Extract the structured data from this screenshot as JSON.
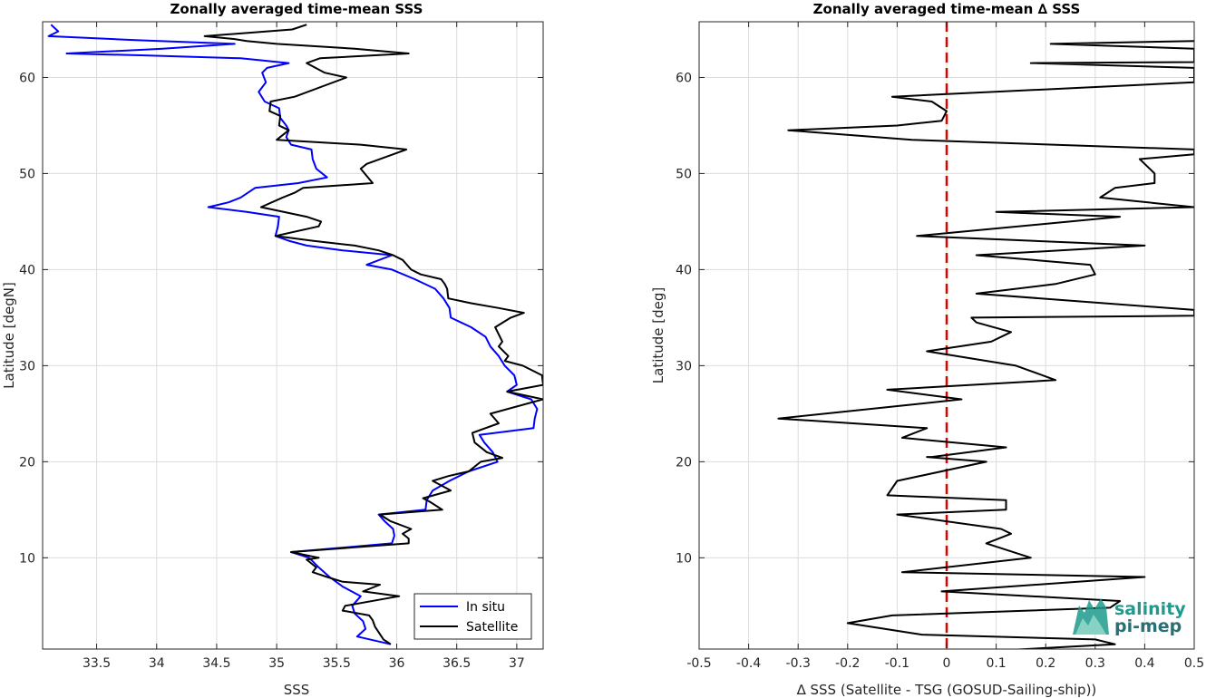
{
  "colors": {
    "in_situ": "#0000ff",
    "satellite": "#000000",
    "zero_line": "#e00000",
    "logo_teal": "#1f9a8c"
  },
  "logo": {
    "line1": "salinity",
    "line2": "pi-mep"
  },
  "chart_data": [
    {
      "type": "line",
      "title": "Zonally averaged time-mean SSS",
      "xlabel": "SSS",
      "ylabel": "Latitude [degN]",
      "xlim": [
        33.05,
        37.22
      ],
      "ylim": [
        0.5,
        65.8
      ],
      "xticks": [
        33.5,
        34,
        34.5,
        35,
        35.5,
        36,
        36.5,
        37
      ],
      "xtick_labels": [
        "33.5",
        "34",
        "34.5",
        "35",
        "35.5",
        "36",
        "36.5",
        "37"
      ],
      "yticks": [
        10,
        20,
        30,
        40,
        50,
        60
      ],
      "ytick_labels": [
        "10",
        "20",
        "30",
        "40",
        "50",
        "60"
      ],
      "grid": true,
      "legend": {
        "location": "bottom-right",
        "entries": [
          "In situ",
          "Satellite"
        ]
      },
      "series": [
        {
          "name": "In situ",
          "color": "#0000ff",
          "points": [
            [
              35.95,
              1.0
            ],
            [
              35.67,
              1.8
            ],
            [
              35.74,
              2.6
            ],
            [
              35.72,
              3.4
            ],
            [
              35.65,
              4.2
            ],
            [
              35.63,
              5.0
            ],
            [
              35.7,
              6.0
            ],
            [
              35.55,
              7.0
            ],
            [
              35.44,
              8.0
            ],
            [
              35.35,
              9.0
            ],
            [
              35.27,
              10.0
            ],
            [
              35.12,
              10.6
            ],
            [
              35.96,
              11.5
            ],
            [
              35.98,
              12.3
            ],
            [
              35.97,
              13.0
            ],
            [
              35.9,
              13.8
            ],
            [
              35.85,
              14.5
            ],
            [
              36.24,
              15.0
            ],
            [
              36.25,
              16.0
            ],
            [
              36.3,
              17.0
            ],
            [
              36.44,
              18.0
            ],
            [
              36.6,
              19.0
            ],
            [
              36.84,
              20.0
            ],
            [
              36.8,
              21.0
            ],
            [
              36.73,
              22.0
            ],
            [
              36.69,
              22.8
            ],
            [
              37.14,
              23.5
            ],
            [
              37.15,
              24.5
            ],
            [
              37.17,
              25.5
            ],
            [
              37.12,
              26.5
            ],
            [
              36.92,
              27.3
            ],
            [
              37.0,
              28.0
            ],
            [
              36.98,
              29.0
            ],
            [
              36.9,
              30.0
            ],
            [
              36.85,
              31.0
            ],
            [
              36.78,
              32.0
            ],
            [
              36.74,
              33.0
            ],
            [
              36.62,
              34.0
            ],
            [
              36.45,
              35.0
            ],
            [
              36.44,
              36.0
            ],
            [
              36.39,
              37.0
            ],
            [
              36.32,
              38.0
            ],
            [
              36.15,
              39.0
            ],
            [
              35.96,
              40.0
            ],
            [
              35.75,
              40.5
            ],
            [
              35.96,
              41.5
            ],
            [
              35.55,
              42.0
            ],
            [
              35.25,
              42.5
            ],
            [
              35.1,
              43.0
            ],
            [
              34.99,
              43.5
            ],
            [
              35.01,
              44.5
            ],
            [
              35.02,
              45.5
            ],
            [
              34.75,
              46.0
            ],
            [
              34.43,
              46.5
            ],
            [
              34.6,
              47.0
            ],
            [
              34.7,
              47.5
            ],
            [
              34.82,
              48.5
            ],
            [
              35.18,
              49.0
            ],
            [
              35.42,
              49.6
            ],
            [
              35.33,
              50.5
            ],
            [
              35.3,
              51.5
            ],
            [
              35.29,
              52.5
            ],
            [
              35.12,
              53.0
            ],
            [
              35.08,
              53.8
            ],
            [
              35.1,
              54.5
            ],
            [
              35.08,
              55.0
            ],
            [
              35.03,
              55.8
            ],
            [
              35.02,
              56.8
            ],
            [
              34.9,
              57.5
            ],
            [
              34.85,
              58.5
            ],
            [
              34.91,
              59.5
            ],
            [
              34.88,
              60.5
            ],
            [
              34.92,
              61.0
            ],
            [
              35.1,
              61.5
            ],
            [
              34.7,
              62.0
            ],
            [
              33.9,
              62.3
            ],
            [
              33.25,
              62.5
            ],
            [
              34.05,
              63.0
            ],
            [
              34.65,
              63.5
            ],
            [
              33.8,
              63.9
            ],
            [
              33.1,
              64.3
            ],
            [
              33.18,
              64.8
            ],
            [
              33.12,
              65.5
            ]
          ]
        },
        {
          "name": "Satellite",
          "color": "#000000",
          "points": [
            [
              35.95,
              1.0
            ],
            [
              35.89,
              1.5
            ],
            [
              35.82,
              2.8
            ],
            [
              35.8,
              3.5
            ],
            [
              35.77,
              4.0
            ],
            [
              35.55,
              4.5
            ],
            [
              35.57,
              5.0
            ],
            [
              36.02,
              6.0
            ],
            [
              35.72,
              6.5
            ],
            [
              35.86,
              7.2
            ],
            [
              35.55,
              7.5
            ],
            [
              35.42,
              8.0
            ],
            [
              35.3,
              8.5
            ],
            [
              35.33,
              9.0
            ],
            [
              35.25,
              9.8
            ],
            [
              35.35,
              10.0
            ],
            [
              35.12,
              10.6
            ],
            [
              36.1,
              11.5
            ],
            [
              36.1,
              12.0
            ],
            [
              36.05,
              12.5
            ],
            [
              36.12,
              13.0
            ],
            [
              35.95,
              13.8
            ],
            [
              35.86,
              14.5
            ],
            [
              36.38,
              15.0
            ],
            [
              36.28,
              15.8
            ],
            [
              36.22,
              16.2
            ],
            [
              36.45,
              17.0
            ],
            [
              36.3,
              18.0
            ],
            [
              36.43,
              18.5
            ],
            [
              36.6,
              19.0
            ],
            [
              36.7,
              20.0
            ],
            [
              36.88,
              20.4
            ],
            [
              36.75,
              21.0
            ],
            [
              36.65,
              22.0
            ],
            [
              36.63,
              23.0
            ],
            [
              36.85,
              24.0
            ],
            [
              36.78,
              25.0
            ],
            [
              37.22,
              26.5
            ],
            [
              36.92,
              27.3
            ],
            [
              37.22,
              28.0
            ],
            [
              37.21,
              29.0
            ],
            [
              37.05,
              30.0
            ],
            [
              36.9,
              30.5
            ],
            [
              36.93,
              31.0
            ],
            [
              36.85,
              32.0
            ],
            [
              36.88,
              32.5
            ],
            [
              36.82,
              34.0
            ],
            [
              36.95,
              35.0
            ],
            [
              37.06,
              35.5
            ],
            [
              36.85,
              36.0
            ],
            [
              36.62,
              36.5
            ],
            [
              36.43,
              37.0
            ],
            [
              36.42,
              38.0
            ],
            [
              36.4,
              38.5
            ],
            [
              36.37,
              39.0
            ],
            [
              36.2,
              39.5
            ],
            [
              36.12,
              40.0
            ],
            [
              36.05,
              41.0
            ],
            [
              35.97,
              41.5
            ],
            [
              35.85,
              42.0
            ],
            [
              35.65,
              42.5
            ],
            [
              35.3,
              43.0
            ],
            [
              34.99,
              43.5
            ],
            [
              35.35,
              44.5
            ],
            [
              35.37,
              45.0
            ],
            [
              35.25,
              45.5
            ],
            [
              34.87,
              46.5
            ],
            [
              35.05,
              47.5
            ],
            [
              35.15,
              48.0
            ],
            [
              35.22,
              48.5
            ],
            [
              35.8,
              49.0
            ],
            [
              35.7,
              50.5
            ],
            [
              35.75,
              51.0
            ],
            [
              36.08,
              52.5
            ],
            [
              35.7,
              53.0
            ],
            [
              35.0,
              53.5
            ],
            [
              35.1,
              54.5
            ],
            [
              35.02,
              55.0
            ],
            [
              35.03,
              56.0
            ],
            [
              34.94,
              56.5
            ],
            [
              34.95,
              57.5
            ],
            [
              35.15,
              58.0
            ],
            [
              35.58,
              60.0
            ],
            [
              35.4,
              60.5
            ],
            [
              35.25,
              61.5
            ],
            [
              35.36,
              62.0
            ],
            [
              36.1,
              62.5
            ],
            [
              35.65,
              63.0
            ],
            [
              35.0,
              63.5
            ],
            [
              34.75,
              63.8
            ],
            [
              34.65,
              64.0
            ],
            [
              34.4,
              64.3
            ],
            [
              35.13,
              65.0
            ],
            [
              35.25,
              65.5
            ]
          ]
        }
      ]
    },
    {
      "type": "line",
      "title": "Zonally averaged time-mean ∆ SSS",
      "xlabel": "∆ SSS (Satellite - TSG (GOSUD-Sailing-ship))",
      "ylabel": "Latitude [deg]",
      "xlim": [
        -0.5,
        0.5
      ],
      "ylim": [
        0.5,
        65.8
      ],
      "xticks": [
        -0.5,
        -0.4,
        -0.3,
        -0.2,
        -0.1,
        0,
        0.1,
        0.2,
        0.3,
        0.4,
        0.5
      ],
      "xtick_labels": [
        "-0.5",
        "-0.4",
        "-0.3",
        "-0.2",
        "-0.1",
        "0",
        "0.1",
        "0.2",
        "0.3",
        "0.4",
        "0.5"
      ],
      "yticks": [
        10,
        20,
        30,
        40,
        50,
        60
      ],
      "ytick_labels": [
        "10",
        "20",
        "30",
        "40",
        "50",
        "60"
      ],
      "grid": true,
      "reference_line": {
        "x": 0,
        "style": "dashed",
        "color": "#e00000"
      },
      "series": [
        {
          "color": "#000000",
          "points": [
            [
              -0.02,
              0.0
            ],
            [
              0.34,
              1.0
            ],
            [
              0.3,
              1.5
            ],
            [
              -0.05,
              2.0
            ],
            [
              -0.2,
              3.2
            ],
            [
              -0.11,
              4.0
            ],
            [
              0.33,
              4.8
            ],
            [
              0.35,
              5.5
            ],
            [
              -0.01,
              6.5
            ],
            [
              0.4,
              8.0
            ],
            [
              -0.09,
              8.5
            ],
            [
              0.17,
              10.0
            ],
            [
              0.08,
              11.5
            ],
            [
              0.13,
              12.5
            ],
            [
              0.11,
              13.0
            ],
            [
              -0.1,
              14.5
            ],
            [
              0.12,
              15.0
            ],
            [
              0.12,
              16.0
            ],
            [
              -0.12,
              16.5
            ],
            [
              -0.1,
              18.0
            ],
            [
              0.08,
              20.0
            ],
            [
              -0.04,
              20.5
            ],
            [
              -0.03,
              20.5
            ],
            [
              0.12,
              21.5
            ],
            [
              -0.09,
              22.5
            ],
            [
              -0.04,
              23.5
            ],
            [
              -0.34,
              24.5
            ],
            [
              -0.06,
              26.0
            ],
            [
              0.03,
              26.5
            ],
            [
              -0.12,
              27.5
            ],
            [
              0.22,
              28.5
            ],
            [
              0.14,
              30.0
            ],
            [
              -0.04,
              31.5
            ],
            [
              0.09,
              32.5
            ],
            [
              0.13,
              33.5
            ],
            [
              0.06,
              34.5
            ],
            [
              0.05,
              35.0
            ],
            [
              0.5,
              35.2
            ],
            [
              0.5,
              35.8
            ],
            [
              0.06,
              37.5
            ],
            [
              0.22,
              38.5
            ],
            [
              0.3,
              39.5
            ],
            [
              0.29,
              40.5
            ],
            [
              0.06,
              41.5
            ],
            [
              0.4,
              42.5
            ],
            [
              -0.06,
              43.5
            ],
            [
              0.35,
              45.5
            ],
            [
              0.1,
              46.0
            ],
            [
              0.5,
              46.5
            ],
            [
              0.31,
              47.5
            ],
            [
              0.34,
              48.5
            ],
            [
              0.42,
              49.0
            ],
            [
              0.42,
              50.0
            ],
            [
              0.4,
              51.0
            ],
            [
              0.39,
              51.5
            ],
            [
              0.5,
              52.0
            ],
            [
              0.5,
              52.5
            ],
            [
              -0.07,
              53.5
            ],
            [
              -0.32,
              54.5
            ],
            [
              -0.1,
              55.0
            ],
            [
              -0.01,
              55.5
            ],
            [
              0.0,
              56.5
            ],
            [
              -0.03,
              57.5
            ],
            [
              -0.11,
              58.0
            ],
            [
              0.5,
              59.5
            ],
            [
              0.5,
              61.0
            ],
            [
              0.17,
              61.5
            ],
            [
              0.5,
              61.6
            ],
            [
              0.5,
              63.0
            ],
            [
              0.21,
              63.5
            ],
            [
              0.5,
              63.8
            ]
          ]
        }
      ]
    }
  ]
}
